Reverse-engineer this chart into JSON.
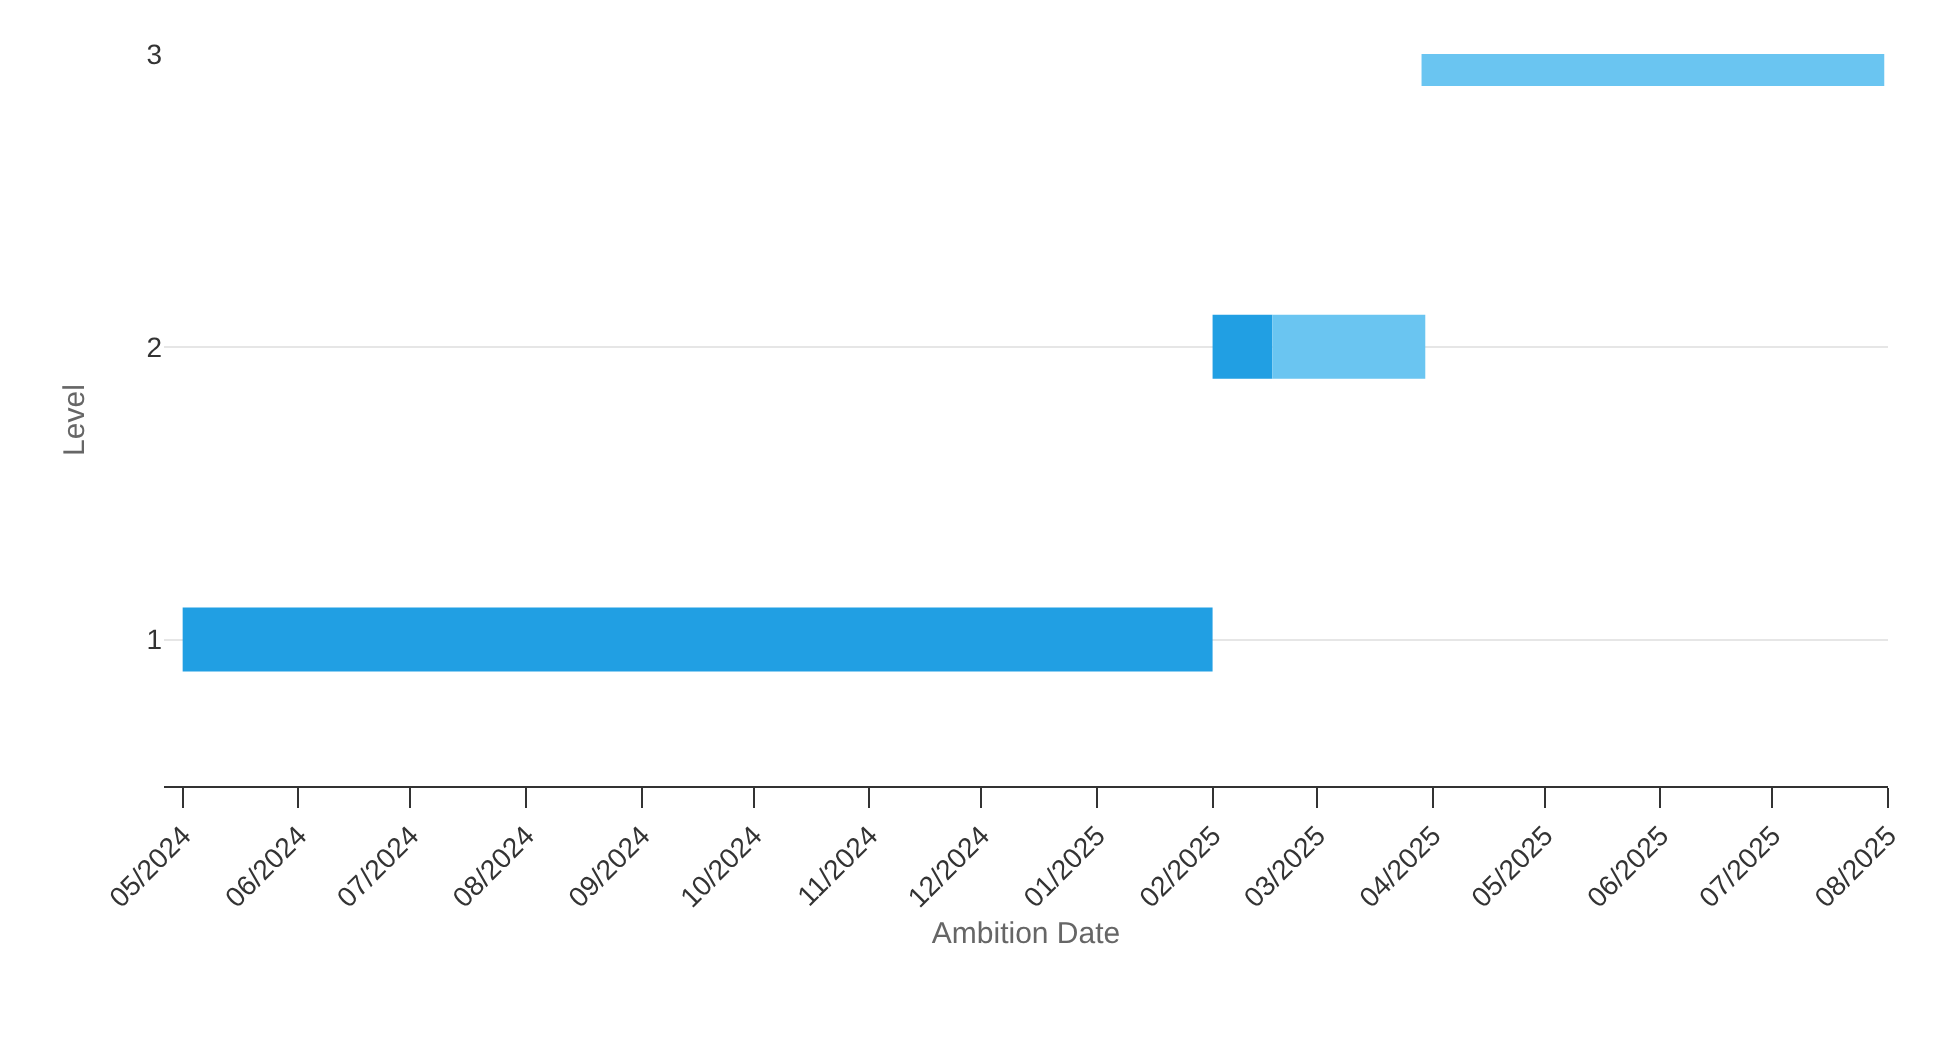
{
  "chart_data": {
    "type": "line",
    "xlabel": "Ambition Date",
    "ylabel": "Level",
    "marker": "none",
    "line_style": "solid",
    "series": [
      {
        "color": "#219fe3",
        "x": [
          "2024-05-01",
          "2025-02-01"
        ],
        "values": [
          1,
          1
        ]
      },
      {
        "color": "#219fe3",
        "x": [
          "2025-02-01",
          "2025-02-17"
        ],
        "values": [
          2,
          2
        ]
      },
      {
        "color": "#6ac5f1",
        "x": [
          "2025-02-17",
          "2025-03-30"
        ],
        "values": [
          2,
          2
        ]
      },
      {
        "color": "#6ac5f1",
        "x": [
          "2025-03-29",
          "2025-07-31"
        ],
        "values": [
          3,
          3
        ]
      }
    ],
    "xlim": [
      "2024-04-26",
      "2025-08-01"
    ],
    "xticks": [
      {
        "value": "2024-05-01",
        "label": "05/2024"
      },
      {
        "value": "2024-06-01",
        "label": "06/2024"
      },
      {
        "value": "2024-07-01",
        "label": "07/2024"
      },
      {
        "value": "2024-08-01",
        "label": "08/2024"
      },
      {
        "value": "2024-09-01",
        "label": "09/2024"
      },
      {
        "value": "2024-10-01",
        "label": "10/2024"
      },
      {
        "value": "2024-11-01",
        "label": "11/2024"
      },
      {
        "value": "2024-12-01",
        "label": "12/2024"
      },
      {
        "value": "2025-01-01",
        "label": "01/2025"
      },
      {
        "value": "2025-02-01",
        "label": "02/2025"
      },
      {
        "value": "2025-03-01",
        "label": "03/2025"
      },
      {
        "value": "2025-04-01",
        "label": "04/2025"
      },
      {
        "value": "2025-05-01",
        "label": "05/2025"
      },
      {
        "value": "2025-06-01",
        "label": "06/2025"
      },
      {
        "value": "2025-07-01",
        "label": "07/2025"
      },
      {
        "value": "2025-08-01",
        "label": "08/2025"
      }
    ],
    "ylim": [
      0.5,
      3
    ],
    "yticks": [
      1,
      2,
      3
    ],
    "grid": "y"
  }
}
